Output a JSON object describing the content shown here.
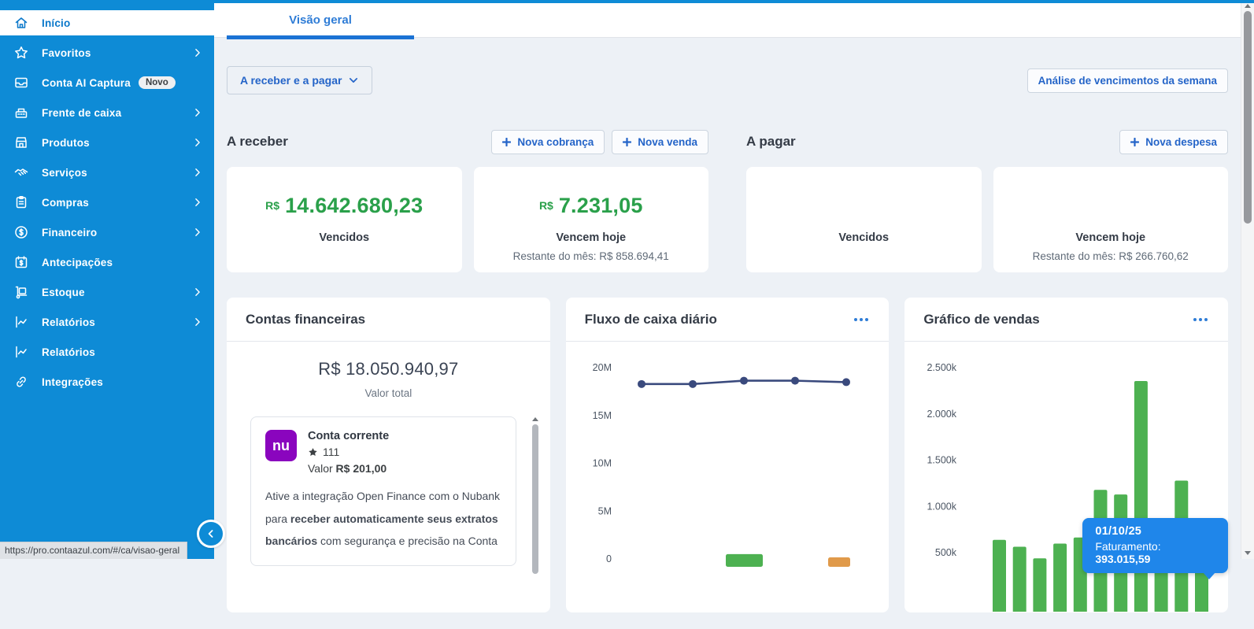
{
  "browser": {
    "status_url": "https://pro.contaazul.com/#/ca/visao-geral"
  },
  "sidebar": {
    "items": [
      {
        "label": "Início",
        "active": true
      },
      {
        "label": "Favoritos",
        "has_submenu": true
      },
      {
        "label": "Conta AI Captura",
        "badge": "Novo"
      },
      {
        "label": "Frente de caixa",
        "has_submenu": true
      },
      {
        "label": "Produtos",
        "has_submenu": true
      },
      {
        "label": "Serviços",
        "has_submenu": true
      },
      {
        "label": "Compras",
        "has_submenu": true
      },
      {
        "label": "Financeiro",
        "has_submenu": true
      },
      {
        "label": "Antecipações"
      },
      {
        "label": "Estoque",
        "has_submenu": true
      },
      {
        "label": "Relatórios",
        "has_submenu": true
      },
      {
        "label": "Relatórios"
      },
      {
        "label": "Integrações"
      }
    ]
  },
  "header": {
    "tab": "Visão geral"
  },
  "toolbar": {
    "scope_button": "A receber e a pagar",
    "week_analysis_button": "Análise de vencimentos da semana"
  },
  "receivables": {
    "title": "A receber",
    "new_charge_button": "Nova cobrança",
    "new_sale_button": "Nova venda",
    "cards": [
      {
        "currency": "R$",
        "amount": "14.642.680,23",
        "label": "Vencidos"
      },
      {
        "currency": "R$",
        "amount": "7.231,05",
        "label": "Vencem hoje",
        "sub": "Restante do mês: R$ 858.694,41"
      }
    ]
  },
  "payables": {
    "title": "A pagar",
    "new_expense_button": "Nova despesa",
    "cards": [
      {
        "label": "Vencidos"
      },
      {
        "label": "Vencem hoje",
        "sub": "Restante do mês: R$ 266.760,62"
      }
    ]
  },
  "accounts_widget": {
    "title": "Contas financeiras",
    "total": "R$ 18.050.940,97",
    "total_label": "Valor total",
    "account": {
      "logo_text": "nu",
      "name": "Conta corrente",
      "rating": "111",
      "value_prefix": "Valor",
      "value": "R$ 201,00",
      "note": [
        {
          "text": "Ative a integração Open Finance com o Nubank para ",
          "bold": false
        },
        {
          "text": "receber automaticamente seus extratos bancários",
          "bold": true
        },
        {
          "text": " com segurança e precisão na Conta",
          "bold": false
        }
      ]
    }
  },
  "colors": {
    "sidebar_blue": "#0e8bd6",
    "accent_blue": "#2464c8",
    "money_green": "#2aa04a",
    "bar_green": "#4db151",
    "line_navy": "#3a4a7d",
    "orange": "#e09a4a",
    "tooltip_blue": "#1f86ea"
  },
  "chart_data": [
    {
      "type": "line",
      "title": "Fluxo de caixa diário",
      "y_ticks": [
        "20M",
        "15M",
        "10M",
        "5M",
        "0"
      ],
      "y_tick_values_millions": [
        20,
        15,
        10,
        5,
        0
      ],
      "values_millions": [
        18.3,
        18.3,
        18.65,
        18.65,
        18.5
      ],
      "ylim_millions": [
        0,
        20
      ],
      "grid": false,
      "legend": "none",
      "line_color": "#3a4a7d",
      "bottom_bars": [
        {
          "color": "#4db151",
          "value_millions": 0.5
        },
        {
          "color": "#e09a4a",
          "value_millions": 0.15
        }
      ]
    },
    {
      "type": "bar",
      "title": "Gráfico de vendas",
      "y_ticks": [
        "2.500k",
        "2.000k",
        "1.500k",
        "1.000k",
        "500k"
      ],
      "y_tick_values_k": [
        2500,
        2000,
        1500,
        1000,
        500
      ],
      "values_k": [
        640,
        565,
        440,
        600,
        665,
        1180,
        1130,
        2355,
        800,
        1280,
        700
      ],
      "ylim_k": [
        0,
        2500
      ],
      "grid": false,
      "legend": "none",
      "bar_color": "#4db151",
      "tooltip": {
        "date": "01/10/25",
        "label": "Faturamento:",
        "value": "393.015,59"
      }
    }
  ]
}
